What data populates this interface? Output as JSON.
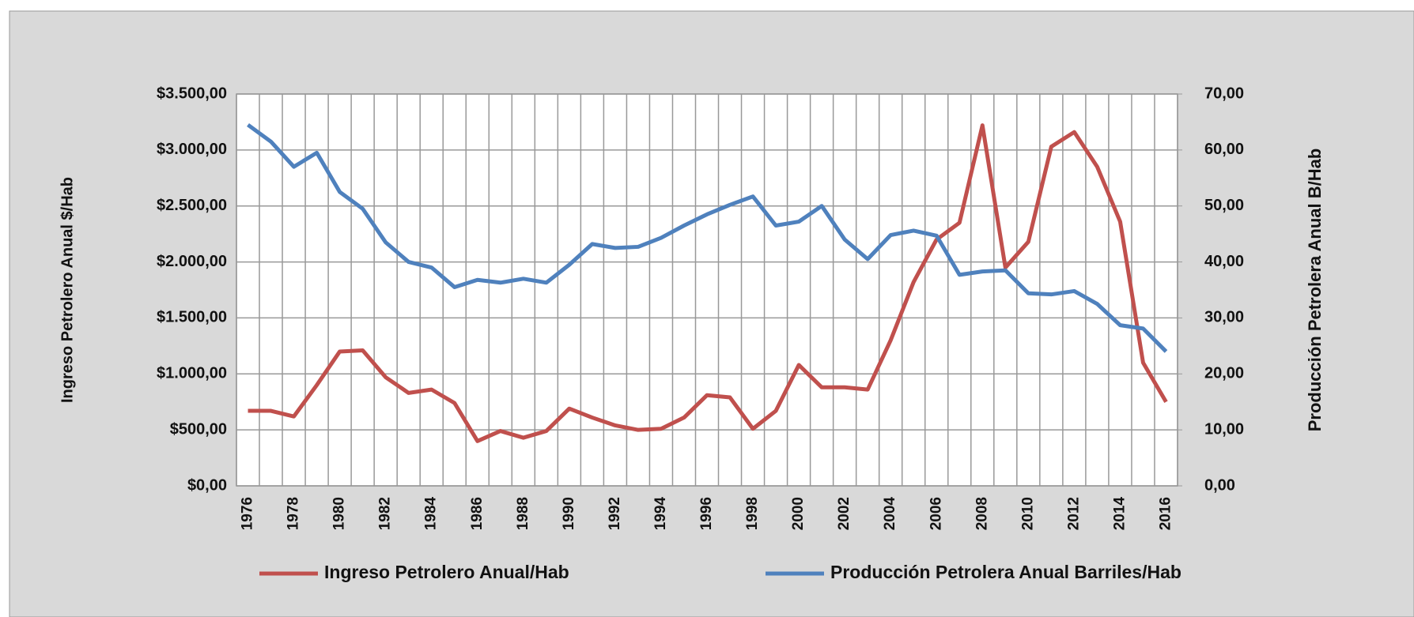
{
  "chart_data": {
    "type": "line",
    "categories": [
      "1976",
      null,
      "1978",
      null,
      "1980",
      null,
      "1982",
      null,
      "1984",
      null,
      "1986",
      null,
      "1988",
      null,
      "1990",
      null,
      "1992",
      null,
      "1994",
      null,
      "1996",
      null,
      "1998",
      null,
      "2000",
      null,
      "2002",
      null,
      "2004",
      null,
      "2006",
      null,
      "2008",
      null,
      "2010",
      null,
      "2012",
      null,
      "2014",
      null,
      "2016"
    ],
    "ylabel": "Ingreso Petrolero Anual $/Hab",
    "y2label": "Producción Petrolera Anual B/Hab",
    "ylim": [
      0,
      3500
    ],
    "yticks": [
      {
        "value": 0,
        "label": "$0,00"
      },
      {
        "value": 500,
        "label": "$500,00"
      },
      {
        "value": 1000,
        "label": "$1.000,00"
      },
      {
        "value": 1500,
        "label": "$1.500,00"
      },
      {
        "value": 2000,
        "label": "$2.000,00"
      },
      {
        "value": 2500,
        "label": "$2.500,00"
      },
      {
        "value": 3000,
        "label": "$3.000,00"
      },
      {
        "value": 3500,
        "label": "$3.500,00"
      }
    ],
    "y2lim": [
      0,
      70
    ],
    "y2ticks": [
      {
        "value": 0,
        "label": "0,00"
      },
      {
        "value": 10,
        "label": "10,00"
      },
      {
        "value": 20,
        "label": "20,00"
      },
      {
        "value": 30,
        "label": "30,00"
      },
      {
        "value": 40,
        "label": "40,00"
      },
      {
        "value": 50,
        "label": "50,00"
      },
      {
        "value": 60,
        "label": "60,00"
      },
      {
        "value": 70,
        "label": "70,00"
      }
    ],
    "grid": true,
    "legend": "bottom",
    "series": [
      {
        "name": "Ingreso Petrolero Anual/Hab",
        "color": "#c0504d",
        "values": [
          670,
          670,
          620,
          900,
          1200,
          1210,
          970,
          830,
          860,
          740,
          400,
          490,
          430,
          490,
          690,
          610,
          540,
          500,
          510,
          610,
          810,
          790,
          510,
          670,
          1080,
          880,
          880,
          860,
          1300,
          1820,
          2200,
          2350,
          3220,
          1950,
          2180,
          3030,
          3160,
          2850,
          2360,
          1100,
          750
        ]
      },
      {
        "name": "Producción Petrolera Anual Barriles/Hab",
        "color": "#4f81bd",
        "axis": "y2",
        "values": [
          64.5,
          61.5,
          57,
          59.5,
          52.5,
          49.5,
          43.5,
          40,
          39,
          35.5,
          36.8,
          36.3,
          37,
          36.3,
          39.5,
          43.2,
          42.5,
          42.7,
          44.3,
          46.5,
          48.5,
          50.2,
          51.7,
          46.5,
          47.2,
          50,
          44,
          40.5,
          44.8,
          45.6,
          44.7,
          37.7,
          38.3,
          38.5,
          34.4,
          34.2,
          34.8,
          32.5,
          28.7,
          28.1,
          24
        ]
      }
    ]
  }
}
